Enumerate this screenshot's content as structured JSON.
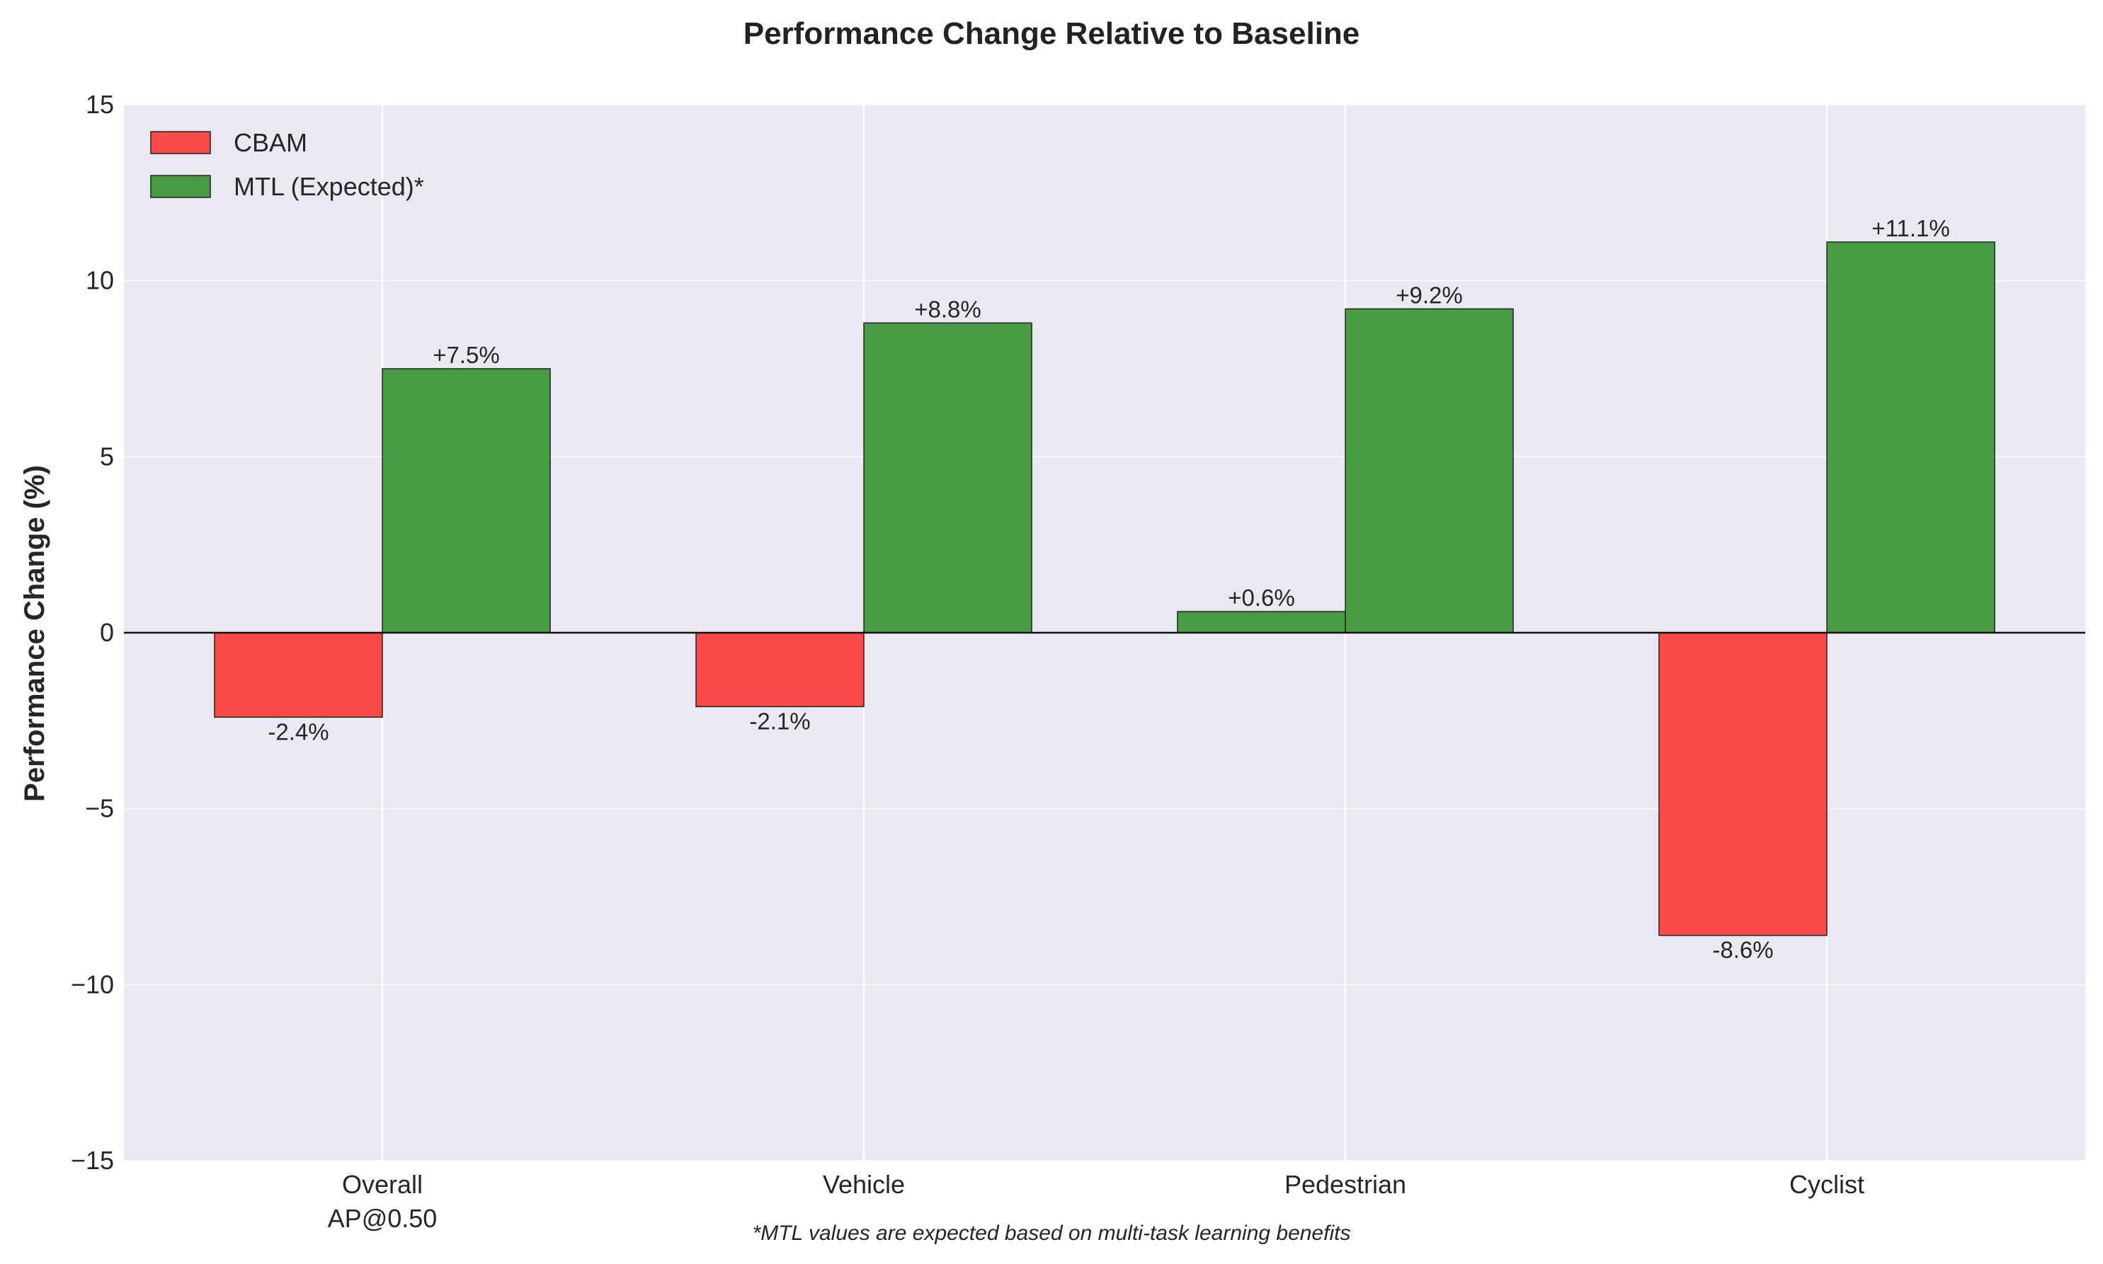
{
  "chart_data": {
    "type": "bar",
    "title": "Performance Change Relative to Baseline",
    "xlabel": "",
    "ylabel": "Performance Change (%)",
    "ylim": [
      -15,
      15
    ],
    "yticks": [
      "15",
      "10",
      "5",
      "0",
      "−5",
      "−10",
      "−15"
    ],
    "ytick_values": [
      15,
      10,
      5,
      0,
      -5,
      -10,
      -15
    ],
    "categories": [
      [
        "Overall",
        "AP@0.50"
      ],
      [
        "Vehicle"
      ],
      [
        "Pedestrian"
      ],
      [
        "Cyclist"
      ]
    ],
    "series": [
      {
        "name": "CBAM",
        "color": "#fa3c3c",
        "values": [
          -2.4,
          -2.1,
          0.6,
          -8.6
        ],
        "labels": [
          "-2.4%",
          "-2.1%",
          "+0.6%",
          "-8.6%"
        ]
      },
      {
        "name": "MTL (Expected)*",
        "color": "#3a9436",
        "values": [
          7.5,
          8.8,
          9.2,
          11.1
        ],
        "labels": [
          "+7.5%",
          "+8.8%",
          "+9.2%",
          "+11.1%"
        ]
      }
    ],
    "positive_override_color": "#3a9436",
    "grid": true,
    "legend_position": "top-left",
    "footnote": "*MTL values are expected based on multi-task learning benefits",
    "background": "#e9e9f1",
    "grid_color": "#ffffff"
  }
}
